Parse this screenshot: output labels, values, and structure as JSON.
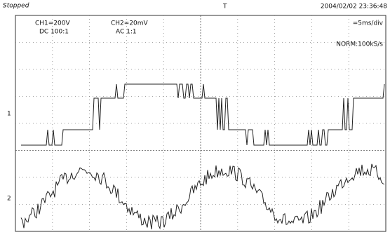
{
  "status": "Stopped",
  "timestamp": "2004/02/02 23:36:48",
  "channels": [
    {
      "scale": "CH1=200V",
      "coupling": "DC 100:1",
      "marker": "1"
    },
    {
      "scale": "CH2=20mV",
      "coupling": "AC 1:1",
      "marker": "2"
    }
  ],
  "timebase": "=5ms/div",
  "acquisition": "NORM:100kS/s",
  "trigger_marker": "T"
}
